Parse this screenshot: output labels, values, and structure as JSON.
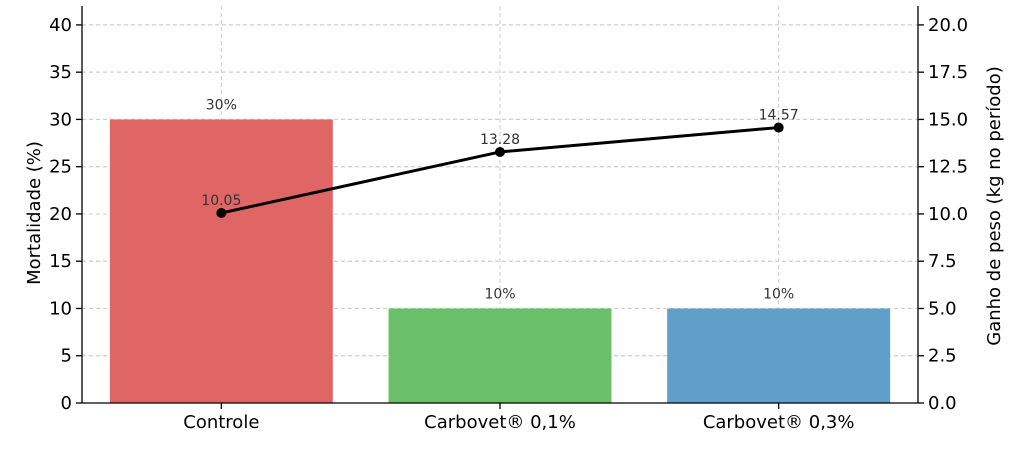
{
  "chart_data": {
    "type": "bar",
    "categories": [
      "Controle",
      "Carbovet® 0,1%",
      "Carbovet® 0,3%"
    ],
    "bar_series": {
      "values": [
        30,
        10,
        10
      ],
      "labels": [
        "30%",
        "10%",
        "10%"
      ],
      "colors": [
        "#e06666",
        "#6abf69",
        "#619fcb"
      ]
    },
    "line_series": {
      "values": [
        10.05,
        13.28,
        14.57
      ],
      "labels": [
        "10.05",
        "13.28",
        "14.57"
      ],
      "color": "#000000"
    },
    "ylabel_left": "Mortalidade (%)",
    "ylabel_right": "Ganho de peso (kg no período)",
    "ylim_left": [
      0,
      42
    ],
    "ylim_right": [
      0,
      21
    ],
    "yticks_left": [
      "0",
      "5",
      "10",
      "15",
      "20",
      "25",
      "30",
      "35",
      "40"
    ],
    "yticks_right": [
      "0.0",
      "2.5",
      "5.0",
      "7.5",
      "10.0",
      "12.5",
      "15.0",
      "17.5",
      "20.0"
    ],
    "grid": true
  }
}
